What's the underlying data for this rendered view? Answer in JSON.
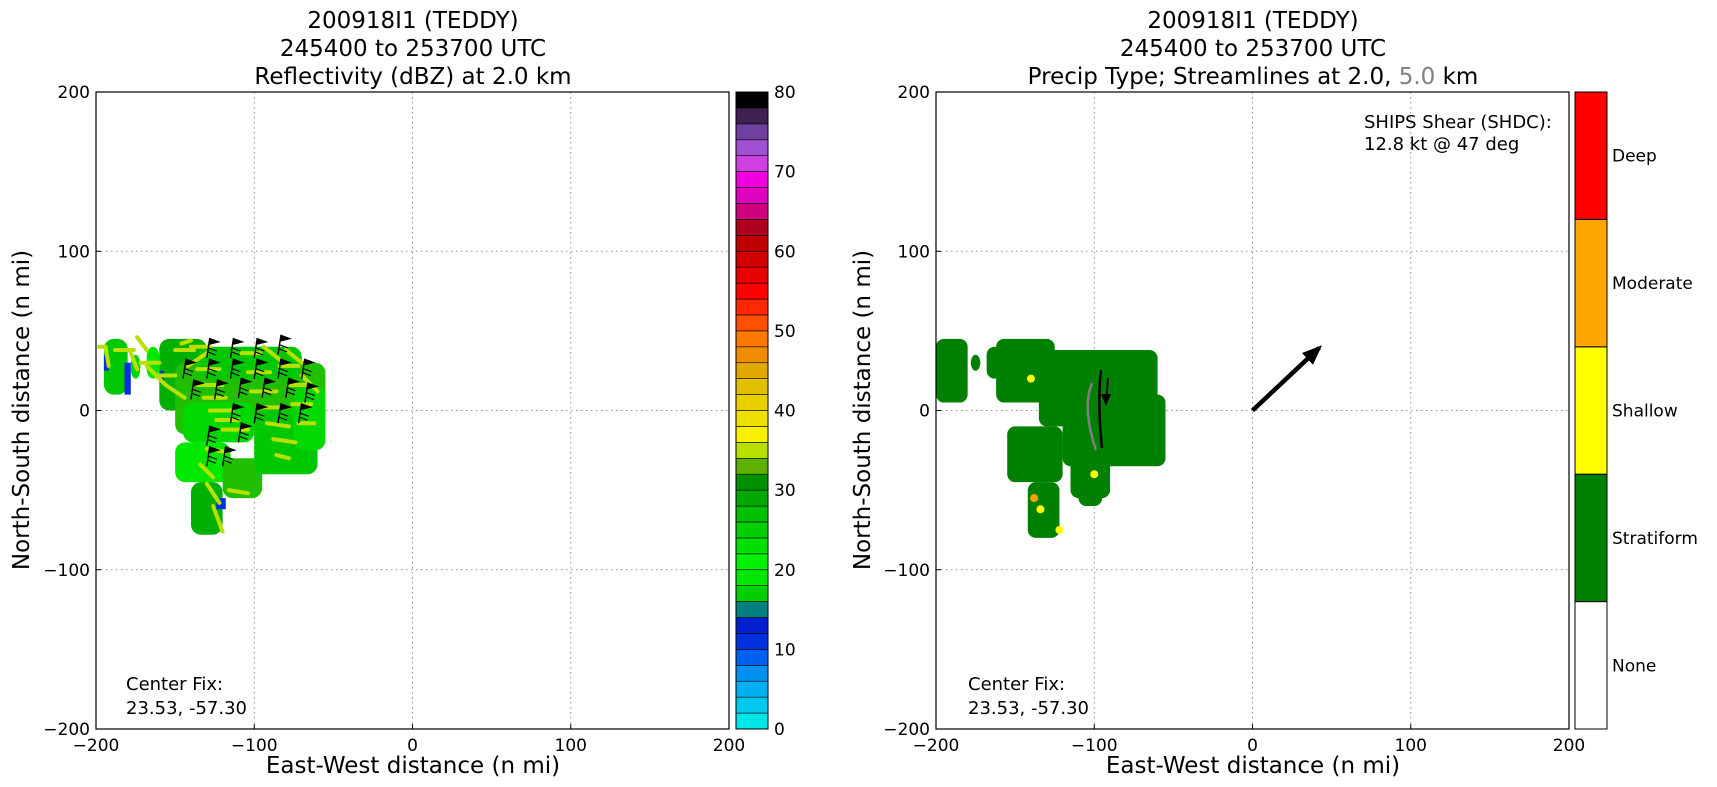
{
  "chart_data": [
    {
      "type": "heatmap",
      "title_lines": [
        "200918I1 (TEDDY)",
        "245400 to 253700 UTC",
        "Reflectivity (dBZ) at 2.0 km"
      ],
      "xlabel": "East-West distance (n mi)",
      "ylabel": "North-South distance (n mi)",
      "xlim": [
        -200,
        200
      ],
      "ylim": [
        -200,
        200
      ],
      "xticks": [
        -200,
        -100,
        0,
        100,
        200
      ],
      "yticks": [
        -200,
        -100,
        0,
        100,
        200
      ],
      "xtick_labels": [
        "−200",
        "−100",
        "0",
        "100",
        "200"
      ],
      "ytick_labels": [
        "−200",
        "−100",
        "0",
        "100",
        "200"
      ],
      "grid": true,
      "annotation": {
        "line1": "Center Fix:",
        "line2": "23.53, -57.30"
      },
      "colorbar": {
        "min": 0,
        "max": 80,
        "step": 2.5,
        "ticks": [
          0,
          10,
          20,
          30,
          40,
          50,
          60,
          70,
          80
        ],
        "tick_labels": [
          "0",
          "10",
          "20",
          "30",
          "40",
          "50",
          "60",
          "70",
          "80"
        ],
        "colors": [
          "#00e5e5",
          "#00c8ef",
          "#00b0f0",
          "#0090f0",
          "#0060f0",
          "#0030e0",
          "#0020d0",
          "#008080",
          "#00d000",
          "#00e800",
          "#00f000",
          "#00e000",
          "#00d000",
          "#00c000",
          "#00a800",
          "#009000",
          "#60b000",
          "#b8e000",
          "#f8f000",
          "#f0e000",
          "#e8d000",
          "#e0c000",
          "#e0a800",
          "#f08c00",
          "#ff7800",
          "#ff5000",
          "#ff2800",
          "#ff0000",
          "#e80000",
          "#d00000",
          "#c00000",
          "#b00020",
          "#d00080",
          "#e000c0",
          "#f000e0",
          "#d040e0",
          "#a050d0",
          "#7040a0",
          "#402050",
          "#000000"
        ]
      },
      "echo_cells": [
        [
          -198,
          40,
          -194,
          40
        ],
        [
          -194,
          40,
          -192,
          28
        ],
        [
          -188,
          38,
          -176,
          38
        ],
        [
          -178,
          36,
          -174,
          26
        ],
        [
          -174,
          46,
          -168,
          38
        ],
        [
          -172,
          30,
          -160,
          30
        ],
        [
          -168,
          28,
          -156,
          16
        ],
        [
          -162,
          22,
          -150,
          22
        ],
        [
          -156,
          16,
          -144,
          8
        ],
        [
          -150,
          38,
          -138,
          38
        ],
        [
          -146,
          42,
          -140,
          44
        ],
        [
          -140,
          40,
          -128,
          40
        ],
        [
          -142,
          28,
          -130,
          36
        ],
        [
          -136,
          26,
          -122,
          26
        ],
        [
          -136,
          16,
          -120,
          16
        ],
        [
          -132,
          8,
          -118,
          8
        ],
        [
          -128,
          0,
          -114,
          0
        ],
        [
          -124,
          -6,
          -110,
          -6
        ],
        [
          -120,
          -12,
          -104,
          -12
        ],
        [
          -130,
          -24,
          -118,
          -26
        ],
        [
          -134,
          -34,
          -126,
          -42
        ],
        [
          -130,
          -46,
          -122,
          -58
        ],
        [
          -126,
          -60,
          -120,
          -76
        ],
        [
          -116,
          -50,
          -104,
          -52
        ],
        [
          -108,
          36,
          -96,
          36
        ],
        [
          -104,
          24,
          -90,
          24
        ],
        [
          -102,
          12,
          -86,
          12
        ],
        [
          -96,
          2,
          -82,
          2
        ],
        [
          -92,
          -8,
          -78,
          -10
        ],
        [
          -88,
          -18,
          -74,
          -20
        ],
        [
          -84,
          28,
          -72,
          28
        ],
        [
          -78,
          16,
          -66,
          16
        ],
        [
          -76,
          4,
          -64,
          4
        ],
        [
          -72,
          -8,
          -62,
          -8
        ],
        [
          -94,
          40,
          -84,
          32
        ],
        [
          -80,
          38,
          -70,
          30
        ],
        [
          -70,
          22,
          -60,
          12
        ],
        [
          -86,
          -28,
          -78,
          -30
        ]
      ],
      "wind_barbs": [
        [
          -145,
          20
        ],
        [
          -130,
          20
        ],
        [
          -115,
          20
        ],
        [
          -100,
          20
        ],
        [
          -85,
          20
        ],
        [
          -70,
          20
        ],
        [
          -130,
          33
        ],
        [
          -115,
          33
        ],
        [
          -100,
          33
        ],
        [
          -85,
          35
        ],
        [
          -140,
          7
        ],
        [
          -125,
          7
        ],
        [
          -110,
          8
        ],
        [
          -95,
          8
        ],
        [
          -80,
          8
        ],
        [
          -68,
          5
        ],
        [
          -115,
          -8
        ],
        [
          -100,
          -8
        ],
        [
          -85,
          -8
        ],
        [
          -72,
          -8
        ],
        [
          -130,
          -22
        ],
        [
          -120,
          -35
        ],
        [
          -130,
          -35
        ],
        [
          -110,
          -20
        ]
      ]
    },
    {
      "type": "heatmap",
      "title_lines": [
        "200918I1 (TEDDY)",
        "245400 to 253700 UTC"
      ],
      "title_line3": {
        "prefix": "Precip Type; Streamlines at 2.0,",
        "highlight": "5.0",
        "suffix": "km",
        "highlight_color": "#808080"
      },
      "xlabel": "East-West distance (n mi)",
      "ylabel": "North-South distance (n mi)",
      "xlim": [
        -200,
        200
      ],
      "ylim": [
        -200,
        200
      ],
      "xticks": [
        -200,
        -100,
        0,
        100,
        200
      ],
      "yticks": [
        -200,
        -100,
        0,
        100,
        200
      ],
      "xtick_labels": [
        "−200",
        "−100",
        "0",
        "100",
        "200"
      ],
      "ytick_labels": [
        "−200",
        "−100",
        "0",
        "100",
        "200"
      ],
      "grid": true,
      "annotation": {
        "line1": "Center Fix:",
        "line2": "23.53, -57.30"
      },
      "shear": {
        "line1": "SHIPS Shear (SHDC):",
        "line2": "12.8 kt @ 47 deg",
        "magnitude_kt": 12.8,
        "direction_deg": 47
      },
      "colorbar": {
        "categories": [
          "None",
          "Stratiform",
          "Shallow",
          "Moderate",
          "Deep"
        ],
        "colors": [
          "#ffffff",
          "#008000",
          "#ffff00",
          "#ffa500",
          "#ff0000"
        ]
      },
      "precip_color": "#008000",
      "convective_spots": [
        [
          -138,
          -55,
          "#ffa500"
        ],
        [
          -134,
          -62,
          "#ffff00"
        ],
        [
          -122,
          -75,
          "#ffff00"
        ],
        [
          -140,
          20,
          "#ffff00"
        ],
        [
          -100,
          -40,
          "#ffff00"
        ]
      ]
    }
  ]
}
